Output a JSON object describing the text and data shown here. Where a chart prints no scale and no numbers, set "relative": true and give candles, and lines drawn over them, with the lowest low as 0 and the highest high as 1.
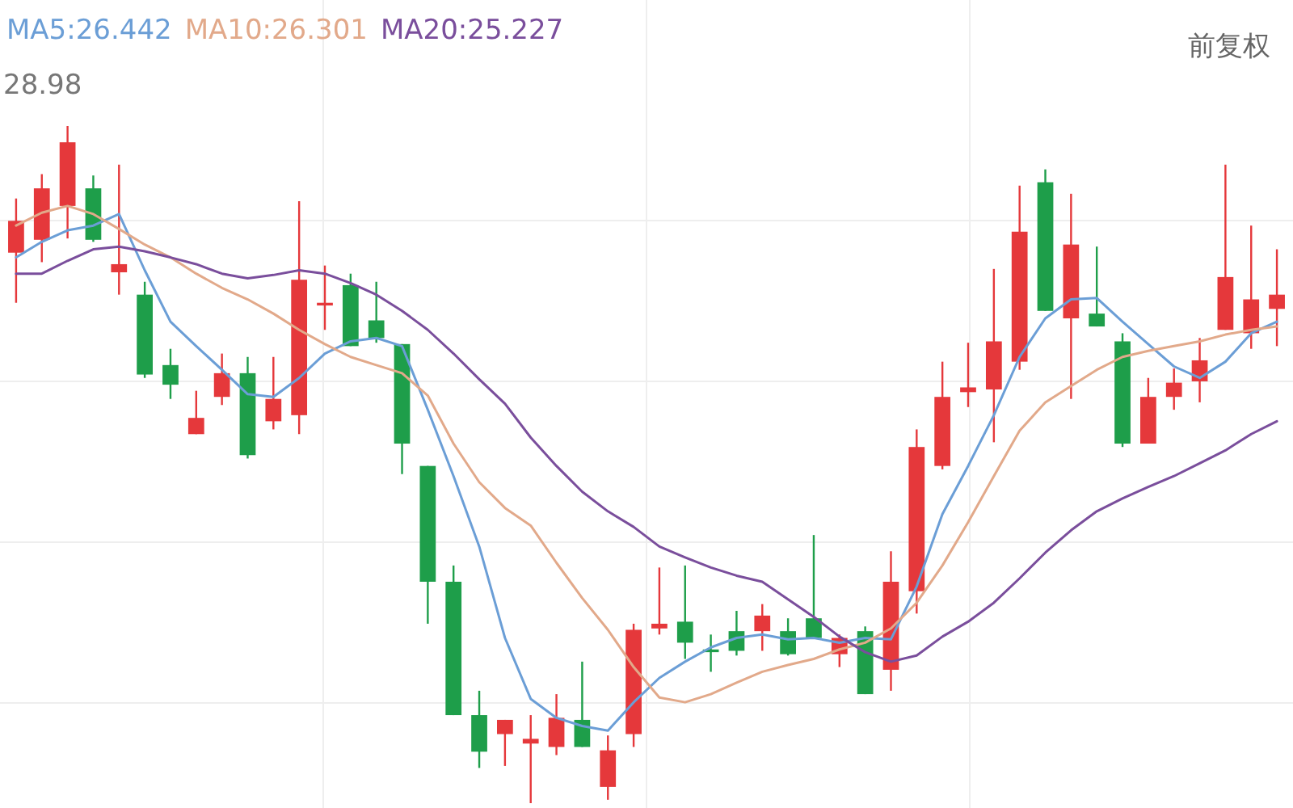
{
  "chart_data": {
    "type": "candlestick",
    "relative": true,
    "grid": true,
    "legend": "top left",
    "categories": [
      null,
      null,
      null,
      null,
      null,
      null,
      null,
      null,
      null,
      null,
      null,
      null,
      null,
      null,
      null,
      null,
      null,
      null,
      null,
      null,
      null,
      null,
      null,
      null,
      null,
      null,
      null,
      null,
      null,
      null,
      null,
      null,
      null,
      null,
      null,
      null,
      null,
      null,
      null,
      null,
      null,
      null,
      null,
      null,
      null,
      null,
      null,
      null,
      null,
      null
    ],
    "ohlc": [
      [
        0.813,
        0.893,
        0.739,
        0.86
      ],
      [
        0.832,
        0.929,
        0.799,
        0.908
      ],
      [
        0.882,
        1,
        0.834,
        0.976
      ],
      [
        0.908,
        0.927,
        0.829,
        0.832
      ],
      [
        0.784,
        0.943,
        0.751,
        0.796
      ],
      [
        0.751,
        0.77,
        0.628,
        0.633
      ],
      [
        0.647,
        0.671,
        0.597,
        0.618
      ],
      [
        0.545,
        0.609,
        0.545,
        0.569
      ],
      [
        0.6,
        0.664,
        0.588,
        0.635
      ],
      [
        0.635,
        0.659,
        0.509,
        0.514
      ],
      [
        0.564,
        0.659,
        0.552,
        0.597
      ],
      [
        0.573,
        0.889,
        0.545,
        0.773
      ],
      [
        0.735,
        0.794,
        0.699,
        0.739
      ],
      [
        0.765,
        0.782,
        0.675,
        0.675
      ],
      [
        0.713,
        0.77,
        0.68,
        0.687
      ],
      [
        0.678,
        0.678,
        0.486,
        0.531
      ],
      [
        0.498,
        0.498,
        0.265,
        0.327
      ],
      [
        0.327,
        0.351,
        0.13,
        0.13
      ],
      [
        0.13,
        0.166,
        0.052,
        0.076
      ],
      [
        0.102,
        0.123,
        0.055,
        0.123
      ],
      [
        0.088,
        0.13,
        0,
        0.095
      ],
      [
        0.083,
        0.161,
        0.071,
        0.126
      ],
      [
        0.123,
        0.209,
        0.083,
        0.083
      ],
      [
        0.024,
        0.1,
        0.005,
        0.078
      ],
      [
        0.102,
        0.265,
        0.083,
        0.256
      ],
      [
        0.258,
        0.348,
        0.249,
        0.265
      ],
      [
        0.268,
        0.351,
        0.213,
        0.237
      ],
      [
        0.227,
        0.249,
        0.194,
        0.223
      ],
      [
        0.254,
        0.284,
        0.218,
        0.225
      ],
      [
        0.254,
        0.294,
        0.225,
        0.277
      ],
      [
        0.254,
        0.273,
        0.218,
        0.22
      ],
      [
        0.273,
        0.396,
        0.244,
        0.244
      ],
      [
        0.22,
        0.249,
        0.201,
        0.244
      ],
      [
        0.254,
        0.261,
        0.161,
        0.161
      ],
      [
        0.197,
        0.372,
        0.166,
        0.327
      ],
      [
        0.313,
        0.552,
        0.28,
        0.526
      ],
      [
        0.498,
        0.652,
        0.493,
        0.6
      ],
      [
        0.607,
        0.68,
        0.585,
        0.614
      ],
      [
        0.611,
        0.789,
        0.533,
        0.682
      ],
      [
        0.652,
        0.912,
        0.64,
        0.844
      ],
      [
        0.917,
        0.936,
        0.727,
        0.727
      ],
      [
        0.716,
        0.9,
        0.597,
        0.825
      ],
      [
        0.723,
        0.822,
        0.704,
        0.704
      ],
      [
        0.682,
        0.694,
        0.526,
        0.531
      ],
      [
        0.531,
        0.628,
        0.531,
        0.6
      ],
      [
        0.6,
        0.642,
        0.581,
        0.621
      ],
      [
        0.623,
        0.687,
        0.592,
        0.654
      ],
      [
        0.699,
        0.943,
        0.699,
        0.777
      ],
      [
        0.694,
        0.853,
        0.671,
        0.744
      ],
      [
        0.73,
        0.818,
        0.675,
        0.751
      ]
    ],
    "colors": [
      "#e5383b",
      "#e5383b",
      "#e5383b",
      "#1e9e4a",
      "#e5383b",
      "#1e9e4a",
      "#1e9e4a",
      "#e5383b",
      "#e5383b",
      "#1e9e4a",
      "#e5383b",
      "#e5383b",
      "#e5383b",
      "#1e9e4a",
      "#1e9e4a",
      "#1e9e4a",
      "#1e9e4a",
      "#1e9e4a",
      "#1e9e4a",
      "#e5383b",
      "#e5383b",
      "#e5383b",
      "#1e9e4a",
      "#e5383b",
      "#e5383b",
      "#e5383b",
      "#1e9e4a",
      "#1e9e4a",
      "#1e9e4a",
      "#e5383b",
      "#1e9e4a",
      "#1e9e4a",
      "#e5383b",
      "#1e9e4a",
      "#e5383b",
      "#e5383b",
      "#e5383b",
      "#e5383b",
      "#e5383b",
      "#e5383b",
      "#1e9e4a",
      "#e5383b",
      "#1e9e4a",
      "#1e9e4a",
      "#e5383b",
      "#e5383b",
      "#e5383b",
      "#e5383b",
      "#e5383b",
      "#e5383b"
    ],
    "series": [
      {
        "name": "MA5:26.442",
        "type": "line",
        "color": "#6b9ed6",
        "values": [
          0.806,
          0.829,
          0.846,
          0.853,
          0.87,
          0.787,
          0.711,
          0.675,
          0.64,
          0.604,
          0.6,
          0.628,
          0.664,
          0.682,
          0.687,
          0.675,
          0.581,
          0.483,
          0.379,
          0.244,
          0.154,
          0.126,
          0.114,
          0.107,
          0.149,
          0.185,
          0.209,
          0.23,
          0.244,
          0.249,
          0.242,
          0.244,
          0.237,
          0.244,
          0.242,
          0.32,
          0.427,
          0.498,
          0.573,
          0.659,
          0.716,
          0.744,
          0.746,
          0.711,
          0.678,
          0.645,
          0.628,
          0.652,
          0.694,
          0.711
        ]
      },
      {
        "name": "MA10:26.301",
        "type": "line",
        "color": "#e2a98a",
        "values": [
          0.853,
          0.872,
          0.882,
          0.87,
          0.848,
          0.825,
          0.806,
          0.782,
          0.761,
          0.744,
          0.723,
          0.699,
          0.678,
          0.659,
          0.647,
          0.635,
          0.602,
          0.531,
          0.474,
          0.436,
          0.41,
          0.355,
          0.303,
          0.256,
          0.201,
          0.156,
          0.149,
          0.161,
          0.178,
          0.194,
          0.204,
          0.213,
          0.227,
          0.237,
          0.258,
          0.296,
          0.351,
          0.415,
          0.483,
          0.55,
          0.592,
          0.616,
          0.64,
          0.659,
          0.668,
          0.675,
          0.682,
          0.692,
          0.699,
          0.704
        ]
      },
      {
        "name": "MA20:25.227",
        "type": "line",
        "color": "#7a4e9c",
        "values": [
          0.782,
          0.782,
          0.801,
          0.818,
          0.822,
          0.815,
          0.806,
          0.796,
          0.782,
          0.775,
          0.78,
          0.787,
          0.782,
          0.768,
          0.751,
          0.727,
          0.699,
          0.664,
          0.626,
          0.59,
          0.54,
          0.498,
          0.46,
          0.431,
          0.408,
          0.379,
          0.363,
          0.348,
          0.336,
          0.327,
          0.301,
          0.275,
          0.246,
          0.223,
          0.209,
          0.218,
          0.246,
          0.268,
          0.296,
          0.332,
          0.37,
          0.403,
          0.431,
          0.45,
          0.467,
          0.483,
          0.502,
          0.521,
          0.545,
          0.564
        ]
      }
    ],
    "annotations": [
      "28.98",
      "前复权"
    ]
  }
}
